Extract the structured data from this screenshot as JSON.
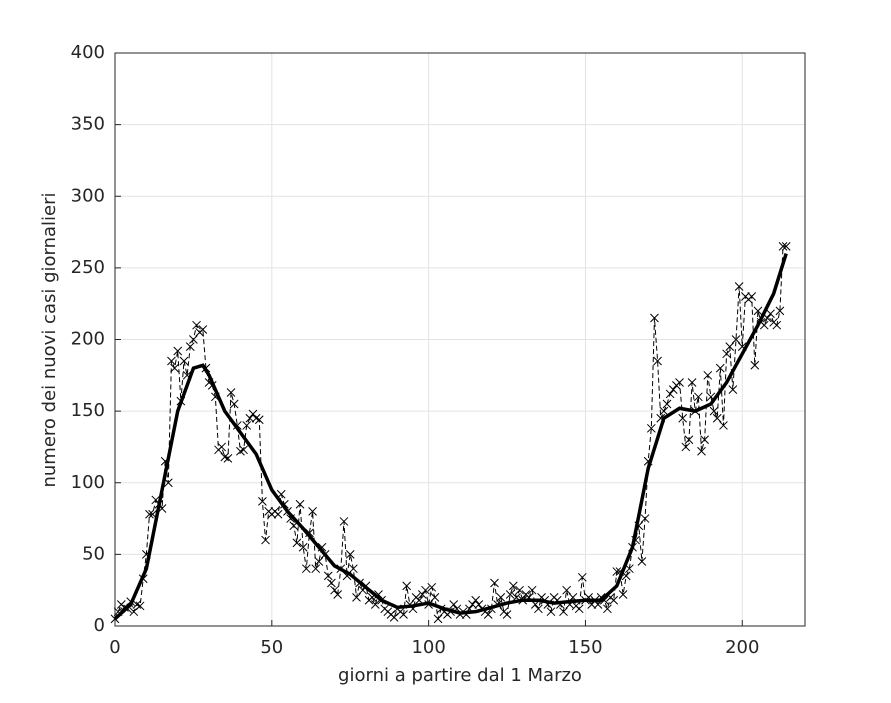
{
  "chart_data": {
    "type": "line",
    "xlabel": "giorni a partire dal 1 Marzo",
    "ylabel": "numero dei nuovi casi giornalieri",
    "xlim": [
      0,
      220
    ],
    "xticks": [
      0,
      50,
      100,
      150,
      200
    ],
    "ylim": [
      0,
      400
    ],
    "yticks": [
      0,
      50,
      100,
      150,
      200,
      250,
      300,
      350,
      400
    ],
    "grid": true,
    "series": [
      {
        "color": "#000000",
        "dashed": true,
        "marker": "x",
        "x": [
          0,
          1,
          2,
          3,
          4,
          5,
          6,
          7,
          8,
          9,
          10,
          11,
          12,
          13,
          14,
          15,
          16,
          17,
          18,
          19,
          20,
          21,
          22,
          23,
          24,
          25,
          26,
          27,
          28,
          29,
          30,
          31,
          32,
          33,
          34,
          35,
          36,
          37,
          38,
          39,
          40,
          41,
          42,
          43,
          44,
          45,
          46,
          47,
          48,
          49,
          50,
          51,
          52,
          53,
          54,
          55,
          56,
          57,
          58,
          59,
          60,
          61,
          62,
          63,
          64,
          65,
          66,
          67,
          68,
          69,
          70,
          71,
          72,
          73,
          74,
          75,
          76,
          77,
          78,
          79,
          80,
          81,
          82,
          83,
          84,
          85,
          86,
          87,
          88,
          89,
          90,
          91,
          92,
          93,
          94,
          95,
          96,
          97,
          98,
          99,
          100,
          101,
          102,
          103,
          104,
          105,
          106,
          107,
          108,
          109,
          110,
          111,
          112,
          113,
          114,
          115,
          116,
          117,
          118,
          119,
          120,
          121,
          122,
          123,
          124,
          125,
          126,
          127,
          128,
          129,
          130,
          131,
          132,
          133,
          134,
          135,
          136,
          137,
          138,
          139,
          140,
          141,
          142,
          143,
          144,
          145,
          146,
          147,
          148,
          149,
          150,
          151,
          152,
          153,
          154,
          155,
          156,
          157,
          158,
          159,
          160,
          161,
          162,
          163,
          164,
          165,
          166,
          167,
          168,
          169,
          170,
          171,
          172,
          173,
          174,
          175,
          176,
          177,
          178,
          179,
          180,
          181,
          182,
          183,
          184,
          185,
          186,
          187,
          188,
          189,
          190,
          191,
          192,
          193,
          194,
          195,
          196,
          197,
          198,
          199,
          200,
          201,
          202,
          203,
          204,
          205,
          206,
          207,
          208,
          209,
          210,
          211,
          212,
          213,
          214
        ],
        "values": [
          5,
          10,
          15,
          13,
          12,
          17,
          10,
          15,
          14,
          33,
          50,
          78,
          78,
          88,
          85,
          82,
          115,
          100,
          185,
          180,
          192,
          157,
          185,
          175,
          195,
          200,
          210,
          205,
          207,
          180,
          170,
          168,
          160,
          123,
          125,
          118,
          117,
          163,
          155,
          140,
          122,
          123,
          140,
          145,
          148,
          145,
          144,
          87,
          60,
          80,
          78,
          80,
          78,
          92,
          85,
          80,
          75,
          70,
          58,
          85,
          55,
          40,
          65,
          80,
          40,
          45,
          55,
          50,
          35,
          30,
          25,
          22,
          40,
          73,
          35,
          50,
          40,
          20,
          30,
          25,
          28,
          18,
          20,
          15,
          22,
          18,
          12,
          10,
          8,
          6,
          12,
          10,
          8,
          28,
          15,
          12,
          20,
          18,
          22,
          25,
          15,
          27,
          20,
          5,
          12,
          10,
          8,
          10,
          15,
          12,
          8,
          10,
          8,
          12,
          15,
          18,
          15,
          12,
          10,
          8,
          12,
          30,
          15,
          20,
          10,
          8,
          22,
          28,
          20,
          25,
          18,
          22,
          20,
          25,
          15,
          12,
          20,
          18,
          15,
          10,
          20,
          18,
          15,
          10,
          25,
          15,
          20,
          14,
          12,
          34,
          18,
          20,
          15,
          18,
          15,
          20,
          18,
          12,
          20,
          18,
          38,
          38,
          22,
          35,
          40,
          55,
          60,
          70,
          45,
          75,
          115,
          138,
          215,
          185,
          145,
          150,
          155,
          162,
          165,
          168,
          170,
          145,
          125,
          130,
          170,
          150,
          160,
          122,
          130,
          175,
          160,
          150,
          145,
          180,
          140,
          190,
          195,
          165,
          200,
          237,
          195,
          230,
          228,
          230,
          182,
          220,
          212,
          210,
          215,
          218,
          212,
          210,
          220,
          265,
          265
        ]
      },
      {
        "color": "#000000",
        "dashed": false,
        "x": [
          0,
          5,
          10,
          15,
          20,
          25,
          28,
          30,
          35,
          40,
          45,
          50,
          55,
          60,
          65,
          70,
          75,
          80,
          85,
          90,
          95,
          100,
          105,
          110,
          115,
          120,
          125,
          130,
          135,
          140,
          145,
          150,
          155,
          160,
          165,
          170,
          175,
          180,
          185,
          190,
          195,
          200,
          205,
          210,
          214
        ],
        "values": [
          5,
          15,
          40,
          95,
          150,
          180,
          182,
          175,
          150,
          135,
          120,
          95,
          80,
          68,
          55,
          42,
          36,
          27,
          18,
          13,
          14,
          16,
          12,
          9,
          10,
          13,
          16,
          18,
          18,
          16,
          17,
          18,
          18,
          28,
          55,
          110,
          145,
          152,
          150,
          155,
          170,
          190,
          210,
          232,
          260
        ]
      }
    ]
  }
}
